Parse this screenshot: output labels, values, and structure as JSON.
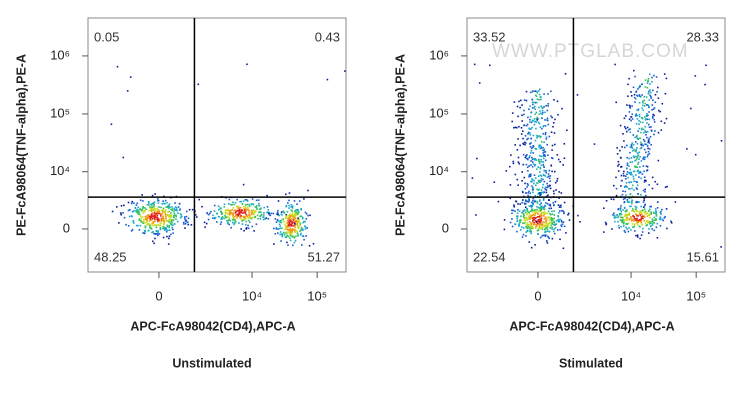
{
  "chart_data": [
    {
      "type": "flow-density",
      "title": "Unstimulated",
      "x_label": "APC-FcA98042(CD4),APC-A",
      "y_label": "PE-FcA98064(TNF-alpha),PE-A",
      "xlim": [
        -4550,
        277000
      ],
      "ylim": [
        -5570,
        4500000
      ],
      "xticks": [
        0,
        {
          "value": 10000,
          "label": "10⁴"
        },
        {
          "value": 100000,
          "label": "10⁵"
        }
      ],
      "yticks": [
        0,
        {
          "value": 10000,
          "label": "10⁴"
        },
        {
          "value": 100000,
          "label": "10⁵"
        },
        {
          "value": 1000000,
          "label": "10⁶"
        }
      ],
      "gate": {
        "x": 1200,
        "y": 3400
      },
      "quadrants": [
        0.05,
        0.43,
        48.25,
        51.27
      ]
    },
    {
      "type": "flow-density",
      "title": "Stimulated",
      "x_label": "APC-FcA98042(CD4),APC-A",
      "y_label": "PE-FcA98064(TNF-alpha),PE-A",
      "xlim": [
        -4550,
        277000
      ],
      "ylim": [
        -5570,
        4500000
      ],
      "xticks": [
        0,
        {
          "value": 10000,
          "label": "10⁴"
        },
        {
          "value": 100000,
          "label": "10⁵"
        }
      ],
      "yticks": [
        0,
        {
          "value": 10000,
          "label": "10⁴"
        },
        {
          "value": 100000,
          "label": "10⁵"
        },
        {
          "value": 1000000,
          "label": "10⁶"
        }
      ],
      "gate": {
        "x": 1200,
        "y": 3400
      },
      "quadrants": [
        33.52,
        28.33,
        22.54,
        15.61
      ],
      "watermark": "WWW.PTGLAB.COM"
    }
  ]
}
